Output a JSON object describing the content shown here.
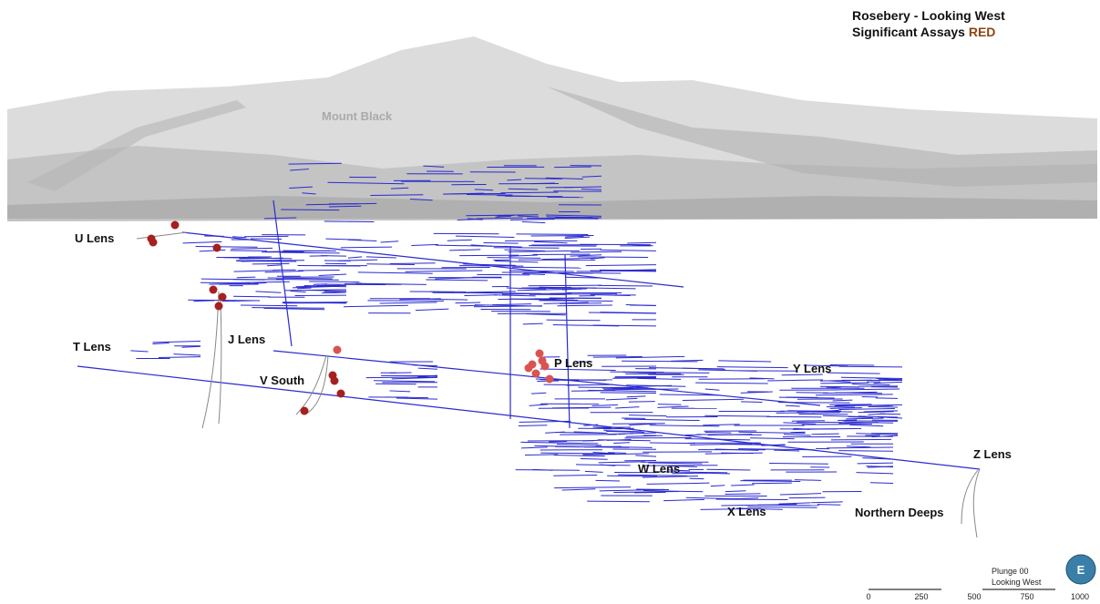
{
  "header": {
    "title_line1": "Rosebery - Looking West",
    "title_line2": "Significant Assays ",
    "title_highlight": "RED"
  },
  "labels": {
    "mountain": "Mount Black",
    "lenses": [
      "U Lens",
      "T Lens",
      "J Lens",
      "V South",
      "P Lens",
      "Y Lens",
      "W Lens",
      "Z Lens",
      "X Lens",
      "Northern Deeps"
    ]
  },
  "view": {
    "plunge": "Plunge 00",
    "direction": "Looking West",
    "compass": "E"
  },
  "scale_bar": [
    "0",
    "250",
    "500",
    "750",
    "1000"
  ]
}
